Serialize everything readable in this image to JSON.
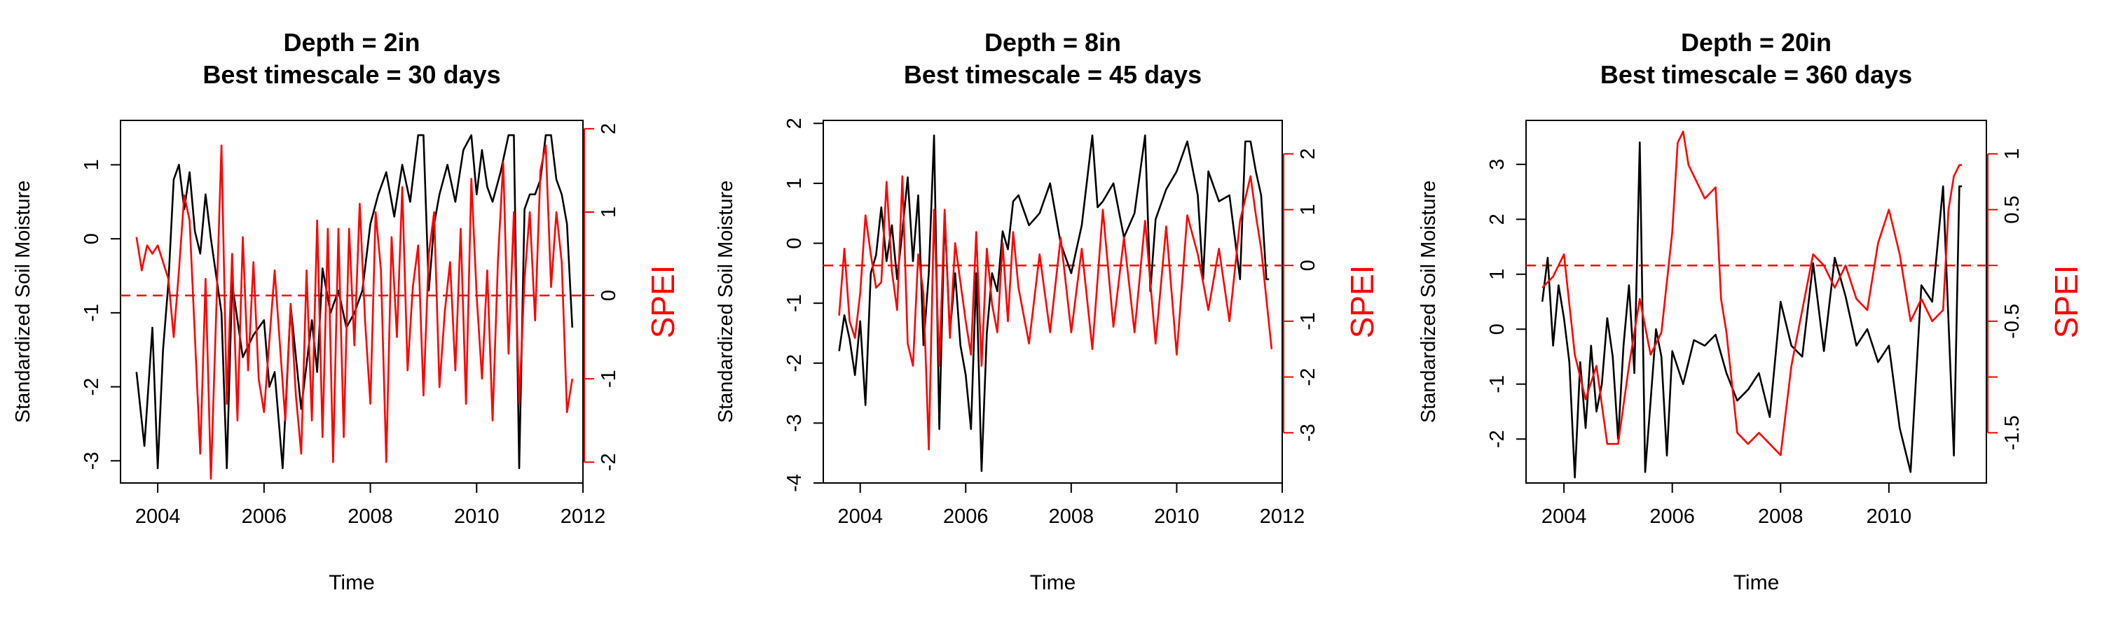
{
  "chart_data": [
    {
      "type": "line",
      "title_line1": "Depth = 2in",
      "title_line2": "Best timescale = 30 days",
      "xlabel": "Time",
      "ylabel": "Standardized Soil Moisture",
      "ylabel_right": "SPEI",
      "xlim": [
        2003.3,
        2012.0
      ],
      "ylim": [
        -3.3,
        1.6
      ],
      "ylim_right": [
        -2.25,
        2.1
      ],
      "xticks": [
        2004,
        2006,
        2008,
        2010,
        2012
      ],
      "yticks": [
        -3,
        -2,
        -1,
        0,
        1
      ],
      "yticks_right": [
        -2,
        -1,
        0,
        1,
        2
      ],
      "hline_right": 0,
      "colors": {
        "left": "#000000",
        "right": "#ff0000"
      },
      "series": [
        {
          "axis": "left",
          "x": [
            2003.6,
            2003.75,
            2003.9,
            2004.0,
            2004.1,
            2004.2,
            2004.3,
            2004.4,
            2004.5,
            2004.6,
            2004.7,
            2004.8,
            2004.9,
            2005.0,
            2005.1,
            2005.2,
            2005.3,
            2005.4,
            2005.6,
            2005.8,
            2006.0,
            2006.1,
            2006.2,
            2006.35,
            2006.5,
            2006.7,
            2006.9,
            2007.0,
            2007.1,
            2007.25,
            2007.4,
            2007.55,
            2007.7,
            2007.85,
            2008.0,
            2008.15,
            2008.3,
            2008.45,
            2008.6,
            2008.75,
            2008.9,
            2009.0,
            2009.1,
            2009.2,
            2009.3,
            2009.45,
            2009.6,
            2009.75,
            2009.9,
            2010.0,
            2010.1,
            2010.2,
            2010.3,
            2010.45,
            2010.6,
            2010.7,
            2010.8,
            2010.9,
            2011.0,
            2011.1,
            2011.2,
            2011.3,
            2011.4,
            2011.5,
            2011.6,
            2011.7,
            2011.8
          ],
          "y": [
            -1.8,
            -2.8,
            -1.2,
            -3.1,
            -1.5,
            -0.6,
            0.8,
            1.0,
            0.4,
            0.9,
            0.1,
            -0.2,
            0.6,
            0.0,
            -0.5,
            -1.0,
            -3.1,
            -0.6,
            -1.6,
            -1.3,
            -1.1,
            -2.0,
            -1.8,
            -3.1,
            -0.9,
            -2.3,
            -1.1,
            -1.8,
            -0.4,
            -1.0,
            -0.7,
            -1.2,
            -1.0,
            -0.7,
            0.2,
            0.6,
            0.9,
            0.3,
            1.0,
            0.5,
            1.4,
            1.4,
            -0.7,
            0.2,
            0.6,
            1.0,
            0.5,
            1.2,
            1.4,
            0.6,
            1.2,
            0.7,
            0.5,
            0.9,
            1.4,
            1.4,
            -3.1,
            0.4,
            0.6,
            0.6,
            0.8,
            1.4,
            1.4,
            0.8,
            0.6,
            0.2,
            -1.2
          ]
        },
        {
          "axis": "right",
          "x": [
            2003.6,
            2003.7,
            2003.8,
            2003.9,
            2004.0,
            2004.1,
            2004.2,
            2004.3,
            2004.4,
            2004.5,
            2004.6,
            2004.7,
            2004.8,
            2004.9,
            2005.0,
            2005.1,
            2005.2,
            2005.3,
            2005.4,
            2005.5,
            2005.6,
            2005.7,
            2005.8,
            2005.9,
            2006.0,
            2006.2,
            2006.4,
            2006.5,
            2006.6,
            2006.7,
            2006.8,
            2006.9,
            2007.0,
            2007.1,
            2007.2,
            2007.3,
            2007.4,
            2007.5,
            2007.6,
            2007.7,
            2007.8,
            2007.9,
            2008.0,
            2008.1,
            2008.2,
            2008.3,
            2008.4,
            2008.5,
            2008.6,
            2008.7,
            2008.8,
            2008.9,
            2009.0,
            2009.1,
            2009.2,
            2009.3,
            2009.4,
            2009.5,
            2009.6,
            2009.7,
            2009.8,
            2009.9,
            2010.0,
            2010.1,
            2010.2,
            2010.3,
            2010.4,
            2010.5,
            2010.6,
            2010.7,
            2010.8,
            2010.9,
            2011.0,
            2011.1,
            2011.2,
            2011.3,
            2011.4,
            2011.5,
            2011.6,
            2011.7,
            2011.8
          ],
          "y": [
            0.7,
            0.3,
            0.6,
            0.5,
            0.6,
            0.4,
            0.2,
            -0.5,
            0.3,
            1.2,
            0.9,
            -0.5,
            -1.9,
            0.2,
            -2.2,
            -0.2,
            1.8,
            -1.3,
            0.5,
            -1.5,
            0.7,
            -0.9,
            0.4,
            -1.0,
            -1.4,
            0.3,
            -1.5,
            -0.1,
            -1.2,
            -1.9,
            0.3,
            -1.5,
            0.9,
            -1.7,
            0.8,
            -2.0,
            0.8,
            -1.7,
            0.8,
            -0.6,
            1.1,
            -0.3,
            -1.3,
            1.0,
            0.3,
            -2.0,
            0.7,
            -0.5,
            1.3,
            -0.9,
            0.1,
            0.6,
            -1.2,
            0.5,
            1.0,
            -1.1,
            -0.2,
            0.4,
            -0.9,
            0.8,
            -1.3,
            1.4,
            0.0,
            -1.0,
            0.3,
            -1.5,
            0.4,
            1.6,
            -0.7,
            1.0,
            -1.3,
            0.2,
            1.0,
            -0.3,
            1.5,
            1.8,
            0.1,
            1.0,
            0.4,
            -1.4,
            -1.0
          ]
        }
      ]
    },
    {
      "type": "line",
      "title_line1": "Depth = 8in",
      "title_line2": "Best timescale = 45 days",
      "xlabel": "Time",
      "ylabel": "Standardized Soil Moisture",
      "ylabel_right": "SPEI",
      "xlim": [
        2003.3,
        2012.0
      ],
      "ylim": [
        -4.0,
        2.05
      ],
      "ylim_right": [
        -3.9,
        2.6
      ],
      "xticks": [
        2004,
        2006,
        2008,
        2010,
        2012
      ],
      "yticks": [
        -4,
        -3,
        -2,
        -1,
        0,
        1,
        2
      ],
      "yticks_right": [
        -3,
        -2,
        -1,
        0,
        1,
        2
      ],
      "hline_right": 0,
      "colors": {
        "left": "#000000",
        "right": "#ff0000"
      },
      "series": [
        {
          "axis": "left",
          "x": [
            2003.6,
            2003.7,
            2003.8,
            2003.9,
            2004.0,
            2004.1,
            2004.2,
            2004.3,
            2004.4,
            2004.5,
            2004.6,
            2004.7,
            2004.8,
            2004.9,
            2005.0,
            2005.1,
            2005.2,
            2005.3,
            2005.4,
            2005.5,
            2005.6,
            2005.7,
            2005.8,
            2005.9,
            2006.0,
            2006.1,
            2006.2,
            2006.3,
            2006.4,
            2006.5,
            2006.6,
            2006.7,
            2006.8,
            2006.9,
            2007.0,
            2007.2,
            2007.4,
            2007.6,
            2007.8,
            2008.0,
            2008.2,
            2008.4,
            2008.5,
            2008.6,
            2008.8,
            2009.0,
            2009.2,
            2009.4,
            2009.5,
            2009.6,
            2009.8,
            2010.0,
            2010.2,
            2010.4,
            2010.5,
            2010.6,
            2010.8,
            2011.0,
            2011.2,
            2011.3,
            2011.4,
            2011.5,
            2011.6,
            2011.7,
            2011.75
          ],
          "y": [
            -1.8,
            -1.2,
            -1.6,
            -2.2,
            -1.3,
            -2.7,
            -0.5,
            -0.2,
            0.6,
            -0.3,
            0.3,
            -0.6,
            0.2,
            1.1,
            -0.3,
            0.8,
            -1.7,
            -0.5,
            1.8,
            -3.1,
            0.5,
            -1.5,
            -0.5,
            -1.7,
            -2.2,
            -3.1,
            -0.5,
            -3.8,
            -1.5,
            -0.5,
            -0.8,
            0.2,
            -0.1,
            0.7,
            0.8,
            0.3,
            0.5,
            1.0,
            0.0,
            -0.5,
            0.3,
            1.8,
            0.6,
            0.7,
            1.0,
            0.1,
            0.5,
            1.8,
            -0.8,
            0.4,
            0.9,
            1.2,
            1.7,
            0.8,
            -0.6,
            1.2,
            0.7,
            0.8,
            -0.6,
            1.7,
            1.7,
            1.2,
            0.8,
            -0.6,
            -0.6
          ]
        },
        {
          "axis": "right",
          "x": [
            2003.6,
            2003.7,
            2003.8,
            2003.9,
            2004.0,
            2004.1,
            2004.2,
            2004.3,
            2004.4,
            2004.5,
            2004.6,
            2004.7,
            2004.8,
            2004.9,
            2005.0,
            2005.1,
            2005.2,
            2005.3,
            2005.4,
            2005.5,
            2005.6,
            2005.7,
            2005.8,
            2005.9,
            2006.0,
            2006.1,
            2006.2,
            2006.3,
            2006.4,
            2006.5,
            2006.6,
            2006.7,
            2006.8,
            2006.9,
            2007.0,
            2007.2,
            2007.4,
            2007.6,
            2007.8,
            2008.0,
            2008.2,
            2008.4,
            2008.6,
            2008.8,
            2009.0,
            2009.2,
            2009.4,
            2009.6,
            2009.8,
            2010.0,
            2010.2,
            2010.4,
            2010.6,
            2010.8,
            2011.0,
            2011.2,
            2011.4,
            2011.5,
            2011.6,
            2011.7,
            2011.8
          ],
          "y": [
            -0.9,
            0.3,
            -1.0,
            -1.3,
            -0.5,
            0.9,
            0.2,
            -0.4,
            -0.3,
            1.5,
            -0.1,
            -0.8,
            1.6,
            -1.4,
            -1.8,
            0.2,
            -0.5,
            -3.3,
            1.0,
            -1.8,
            1.0,
            -1.3,
            0.4,
            -0.3,
            -1.0,
            -1.6,
            0.6,
            -1.8,
            0.3,
            -0.7,
            -1.2,
            0.4,
            -1.0,
            0.6,
            -0.4,
            -1.4,
            0.2,
            -1.2,
            0.5,
            -1.2,
            0.3,
            -1.5,
            1.0,
            -1.1,
            0.5,
            -1.2,
            0.8,
            -1.4,
            0.7,
            -1.6,
            0.9,
            0.2,
            -0.8,
            0.3,
            -1.0,
            0.8,
            1.6,
            0.9,
            0.3,
            -0.6,
            -1.5
          ]
        }
      ]
    },
    {
      "type": "line",
      "title_line1": "Depth = 20in",
      "title_line2": "Best timescale = 360 days",
      "xlabel": "Time",
      "ylabel": "Standardized Soil Moisture",
      "ylabel_right": "SPEI",
      "xlim": [
        2003.3,
        2011.8
      ],
      "ylim": [
        -2.8,
        3.8
      ],
      "ylim_right": [
        -1.95,
        1.3
      ],
      "xticks": [
        2004,
        2006,
        2008,
        2010
      ],
      "yticks": [
        -2,
        -1,
        0,
        1,
        2,
        3
      ],
      "yticks_right": [
        -1.5,
        -0.5,
        0.5,
        1.0
      ],
      "yticks_right_minor": [
        -1.0,
        0.0
      ],
      "hline_right": 0,
      "colors": {
        "left": "#000000",
        "right": "#ff0000"
      },
      "series": [
        {
          "axis": "left",
          "x": [
            2003.6,
            2003.7,
            2003.8,
            2003.9,
            2004.0,
            2004.1,
            2004.2,
            2004.3,
            2004.4,
            2004.5,
            2004.6,
            2004.7,
            2004.8,
            2004.9,
            2005.0,
            2005.1,
            2005.2,
            2005.3,
            2005.4,
            2005.5,
            2005.6,
            2005.7,
            2005.8,
            2005.9,
            2006.0,
            2006.2,
            2006.4,
            2006.6,
            2006.8,
            2007.0,
            2007.2,
            2007.4,
            2007.6,
            2007.8,
            2008.0,
            2008.2,
            2008.4,
            2008.6,
            2008.8,
            2009.0,
            2009.2,
            2009.4,
            2009.6,
            2009.8,
            2010.0,
            2010.2,
            2010.4,
            2010.6,
            2010.8,
            2011.0,
            2011.2,
            2011.3,
            2011.35
          ],
          "y": [
            0.5,
            1.3,
            -0.3,
            0.8,
            0.2,
            -0.6,
            -2.7,
            -0.6,
            -1.8,
            -0.3,
            -1.5,
            -1.0,
            0.2,
            -0.5,
            -2.0,
            -0.3,
            0.8,
            -0.8,
            3.4,
            -2.6,
            -1.3,
            0.0,
            -0.5,
            -2.3,
            -0.4,
            -1.0,
            -0.2,
            -0.3,
            -0.1,
            -0.8,
            -1.3,
            -1.1,
            -0.8,
            -1.6,
            0.5,
            -0.3,
            -0.5,
            1.2,
            -0.4,
            1.3,
            0.6,
            -0.3,
            0.0,
            -0.6,
            -0.3,
            -1.8,
            -2.6,
            0.8,
            0.5,
            2.6,
            -2.3,
            2.6,
            2.6
          ]
        },
        {
          "axis": "right",
          "x": [
            2003.6,
            2003.8,
            2004.0,
            2004.2,
            2004.4,
            2004.6,
            2004.8,
            2005.0,
            2005.2,
            2005.4,
            2005.6,
            2005.8,
            2006.0,
            2006.1,
            2006.2,
            2006.3,
            2006.4,
            2006.6,
            2006.8,
            2006.9,
            2007.0,
            2007.2,
            2007.4,
            2007.6,
            2007.8,
            2008.0,
            2008.2,
            2008.4,
            2008.6,
            2008.8,
            2009.0,
            2009.2,
            2009.4,
            2009.6,
            2009.8,
            2010.0,
            2010.2,
            2010.4,
            2010.6,
            2010.8,
            2011.0,
            2011.1,
            2011.2,
            2011.3,
            2011.35
          ],
          "y": [
            -0.2,
            -0.1,
            0.1,
            -0.8,
            -1.2,
            -0.9,
            -1.6,
            -1.6,
            -0.9,
            -0.3,
            -0.8,
            -0.6,
            0.3,
            1.1,
            1.2,
            0.9,
            0.8,
            0.6,
            0.7,
            -0.3,
            -0.6,
            -1.5,
            -1.6,
            -1.5,
            -1.6,
            -1.7,
            -0.9,
            -0.4,
            0.1,
            0.0,
            -0.2,
            0.0,
            -0.3,
            -0.4,
            0.2,
            0.5,
            0.1,
            -0.5,
            -0.3,
            -0.5,
            -0.4,
            0.5,
            0.8,
            0.9,
            0.9
          ]
        }
      ]
    }
  ]
}
